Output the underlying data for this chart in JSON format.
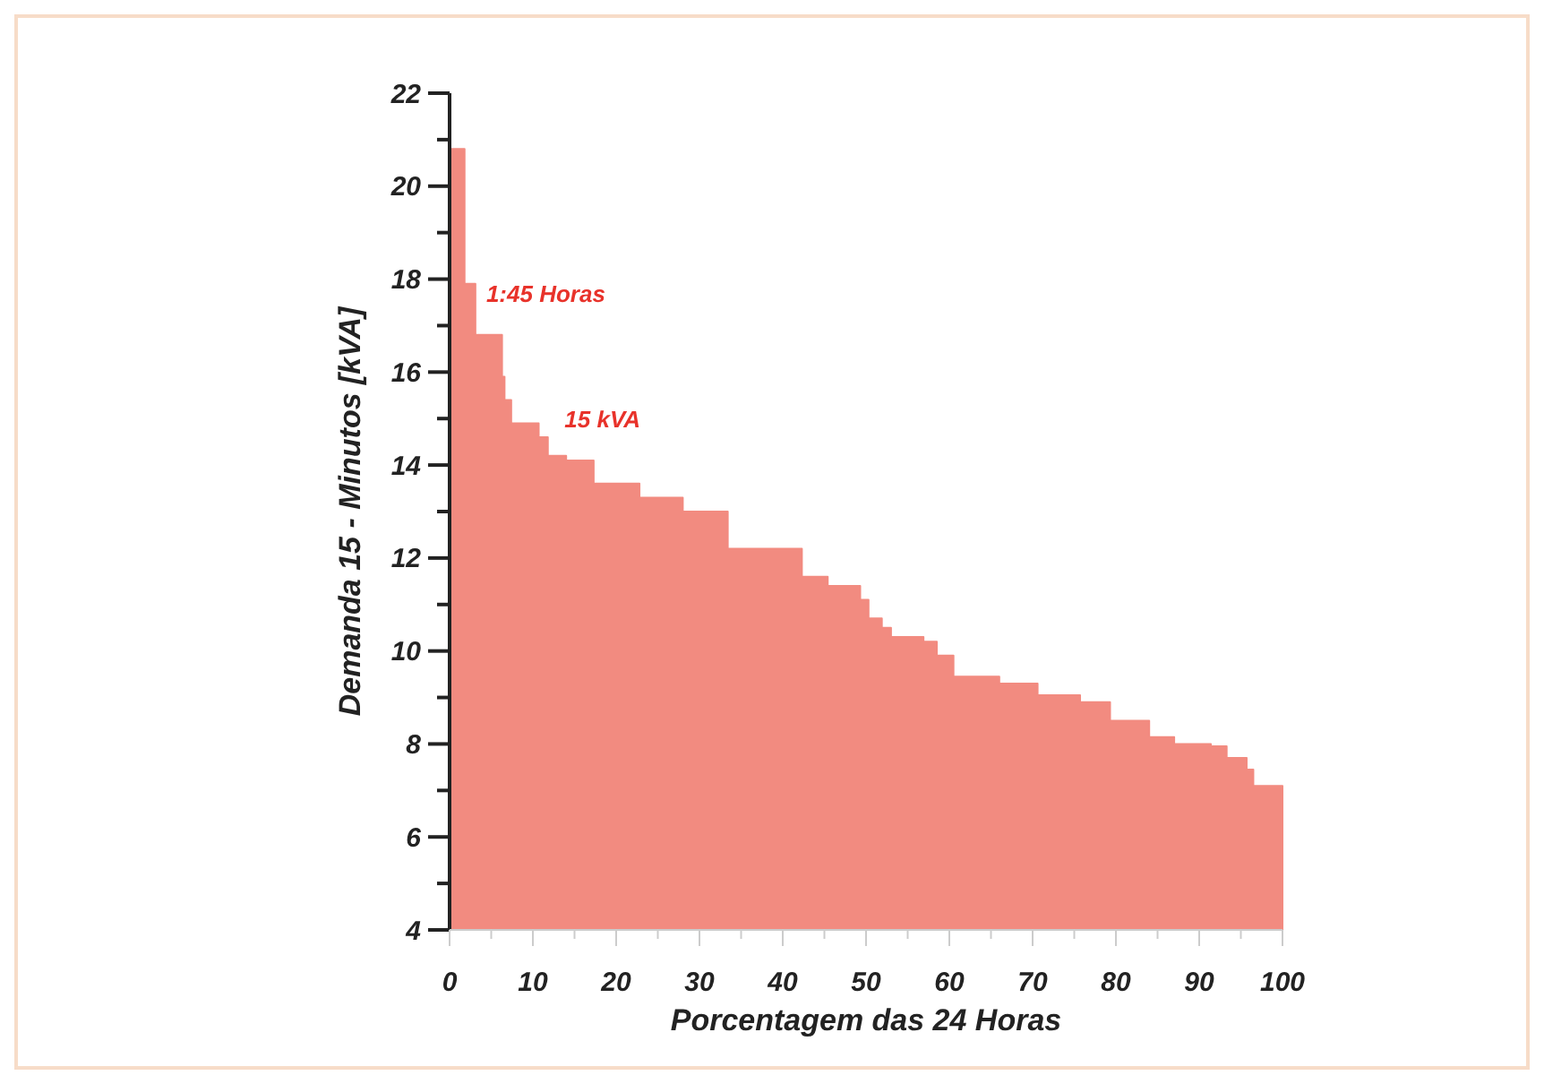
{
  "chart_data": {
    "type": "area",
    "xlabel": "Porcentagem das 24 Horas",
    "ylabel": "Demanda 15 - Minutos [kVA]",
    "x": [
      0,
      1.8,
      1.8,
      3.1,
      3.1,
      6.3,
      6.3,
      6.6,
      6.6,
      7.4,
      7.4,
      10.7,
      10.7,
      11.8,
      11.8,
      14,
      14,
      17.3,
      17.3,
      22.8,
      22.8,
      28,
      28,
      33.4,
      33.4,
      42.3,
      42.3,
      45.4,
      45.4,
      49.3,
      49.3,
      50.3,
      50.3,
      51.9,
      51.9,
      53,
      53,
      56.9,
      56.9,
      58.5,
      58.5,
      60.5,
      60.5,
      66,
      66,
      70.6,
      70.6,
      75.7,
      75.7,
      79.3,
      79.3,
      84,
      84,
      87,
      87,
      91.4,
      91.4,
      93.3,
      93.3,
      95.7,
      95.7,
      96.5,
      96.5,
      100
    ],
    "series": [
      {
        "color": "#f28b80",
        "values": [
          20.8,
          20.8,
          17.9,
          17.9,
          16.8,
          16.8,
          15.9,
          15.9,
          15.4,
          15.4,
          14.9,
          14.9,
          14.6,
          14.6,
          14.2,
          14.2,
          14.1,
          14.1,
          13.6,
          13.6,
          13.3,
          13.3,
          13.0,
          13.0,
          12.2,
          12.2,
          11.6,
          11.6,
          11.4,
          11.4,
          11.1,
          11.1,
          10.7,
          10.7,
          10.5,
          10.5,
          10.3,
          10.3,
          10.2,
          10.2,
          9.9,
          9.9,
          9.45,
          9.45,
          9.3,
          9.3,
          9.05,
          9.05,
          8.9,
          8.9,
          8.5,
          8.5,
          8.15,
          8.15,
          8.0,
          8.0,
          7.95,
          7.95,
          7.7,
          7.7,
          7.45,
          7.45,
          7.1,
          7.1
        ]
      }
    ],
    "xlim": [
      0,
      100
    ],
    "ylim": [
      4,
      22
    ],
    "xticks": [
      0,
      {
        "value": 5,
        "label": null
      },
      10,
      {
        "value": 15,
        "label": null
      },
      20,
      {
        "value": 25,
        "label": null
      },
      30,
      {
        "value": 35,
        "label": null
      },
      40,
      {
        "value": 45,
        "label": null
      },
      50,
      {
        "value": 55,
        "label": null
      },
      60,
      {
        "value": 65,
        "label": null
      },
      70,
      {
        "value": 75,
        "label": null
      },
      80,
      {
        "value": 85,
        "label": null
      },
      90,
      {
        "value": 95,
        "label": null
      },
      100
    ],
    "yticks": [
      4,
      {
        "value": 5,
        "label": null
      },
      6,
      {
        "value": 7,
        "label": null
      },
      8,
      {
        "value": 9,
        "label": null
      },
      10,
      {
        "value": 11,
        "label": null
      },
      12,
      {
        "value": 13,
        "label": null
      },
      14,
      {
        "value": 15,
        "label": null
      },
      16,
      {
        "value": 17,
        "label": null
      },
      18,
      {
        "value": 19,
        "label": null
      },
      20,
      {
        "value": 21,
        "label": null
      },
      22
    ],
    "annotations": [
      "1:45 Horas",
      "15 kVA"
    ]
  }
}
